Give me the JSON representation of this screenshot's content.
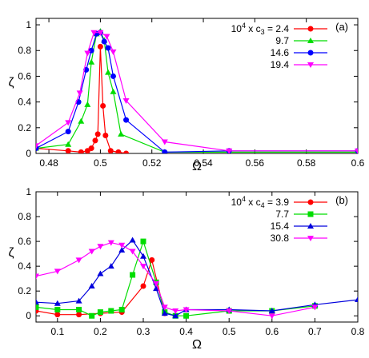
{
  "chart_data": [
    {
      "panel_label": "(a)",
      "type": "line",
      "xlabel": "Ω",
      "ylabel": "ζ",
      "xlim": [
        0.475,
        0.6
      ],
      "ylim": [
        0,
        1.05
      ],
      "xticks": [
        "0.48",
        "0.5",
        "0.52",
        "0.54",
        "0.56",
        "0.58",
        "0.6"
      ],
      "xtick_values": [
        0.48,
        0.5,
        0.52,
        0.54,
        0.56,
        0.58,
        0.6
      ],
      "yticks": [
        "0",
        "0.2",
        "0.4",
        "0.6",
        "0.8",
        "1"
      ],
      "ytick_values": [
        0,
        0.2,
        0.4,
        0.6,
        0.8,
        1.0
      ],
      "legend_position": "top-right",
      "legend_prefix": "10",
      "legend_exp": "4",
      "legend_var": " x c",
      "legend_sub": "3",
      "series": [
        {
          "name": "2.4",
          "color": "#ff0000",
          "marker": "circle",
          "x": [
            0.475,
            0.4875,
            0.4925,
            0.495,
            0.4965,
            0.498,
            0.499,
            0.5,
            0.501,
            0.502,
            0.504,
            0.507,
            0.51
          ],
          "y": [
            0.04,
            0.02,
            0.01,
            0.02,
            0.04,
            0.1,
            0.15,
            0.83,
            0.37,
            0.14,
            0.02,
            0.01,
            0.0
          ]
        },
        {
          "name": "9.7",
          "color": "#00dd00",
          "marker": "triangle-up",
          "x": [
            0.475,
            0.4875,
            0.4925,
            0.495,
            0.4965,
            0.4985,
            0.5,
            0.5015,
            0.503,
            0.505,
            0.508,
            0.525,
            0.55,
            0.6
          ],
          "y": [
            0.04,
            0.07,
            0.25,
            0.38,
            0.71,
            0.93,
            0.95,
            0.88,
            0.63,
            0.48,
            0.15,
            0.01,
            0.01,
            0.01
          ]
        },
        {
          "name": "14.6",
          "color": "#0000ff",
          "marker": "circle",
          "x": [
            0.475,
            0.4875,
            0.4915,
            0.4945,
            0.4965,
            0.4985,
            0.5,
            0.5015,
            0.503,
            0.505,
            0.51,
            0.525,
            0.55,
            0.6
          ],
          "y": [
            0.04,
            0.17,
            0.4,
            0.65,
            0.8,
            0.93,
            0.94,
            0.87,
            0.82,
            0.6,
            0.26,
            0.01,
            0.02,
            0.02
          ]
        },
        {
          "name": "19.4",
          "color": "#ff00ff",
          "marker": "triangle-down",
          "x": [
            0.475,
            0.4875,
            0.492,
            0.495,
            0.4975,
            0.5,
            0.5025,
            0.505,
            0.51,
            0.525,
            0.55,
            0.6
          ],
          "y": [
            0.06,
            0.24,
            0.47,
            0.78,
            0.94,
            0.94,
            0.91,
            0.79,
            0.41,
            0.09,
            0.02,
            0.02
          ]
        }
      ]
    },
    {
      "panel_label": "(b)",
      "type": "line",
      "xlabel": "Ω",
      "ylabel": "ζ",
      "xlim": [
        0.05,
        0.8
      ],
      "ylim": [
        -0.05,
        1.0
      ],
      "xticks": [
        "0.1",
        "0.2",
        "0.3",
        "0.4",
        "0.5",
        "0.6",
        "0.7",
        "0.8"
      ],
      "xtick_values": [
        0.1,
        0.2,
        0.3,
        0.4,
        0.5,
        0.6,
        0.7,
        0.8
      ],
      "yticks": [
        "0",
        "0.2",
        "0.4",
        "0.6",
        "0.8",
        "1"
      ],
      "ytick_values": [
        0,
        0.2,
        0.4,
        0.6,
        0.8,
        1.0
      ],
      "legend_position": "top-right",
      "legend_prefix": "10",
      "legend_exp": "4",
      "legend_var": " x c",
      "legend_sub": "4",
      "series": [
        {
          "name": "3.9",
          "color": "#ff0000",
          "marker": "circle",
          "x": [
            0.05,
            0.1,
            0.15,
            0.2,
            0.25,
            0.3,
            0.32,
            0.35
          ],
          "y": [
            0.04,
            0.01,
            0.01,
            0.02,
            0.03,
            0.24,
            0.45,
            0.02
          ]
        },
        {
          "name": "7.7",
          "color": "#00dd00",
          "marker": "square",
          "x": [
            0.05,
            0.1,
            0.15,
            0.18,
            0.2,
            0.225,
            0.25,
            0.275,
            0.3,
            0.33,
            0.35,
            0.375,
            0.4,
            0.5,
            0.6,
            0.7
          ],
          "y": [
            0.07,
            0.05,
            0.05,
            0.0,
            0.03,
            0.04,
            0.05,
            0.33,
            0.6,
            0.27,
            0.03,
            0.0,
            0.0,
            0.04,
            0.04,
            0.08
          ]
        },
        {
          "name": "15.4",
          "color": "#0000dd",
          "marker": "triangle-up",
          "x": [
            0.05,
            0.1,
            0.15,
            0.18,
            0.2,
            0.225,
            0.25,
            0.275,
            0.3,
            0.33,
            0.35,
            0.375,
            0.4,
            0.5,
            0.6,
            0.7,
            0.8
          ],
          "y": [
            0.11,
            0.1,
            0.12,
            0.24,
            0.34,
            0.4,
            0.53,
            0.61,
            0.48,
            0.22,
            0.02,
            0.0,
            0.05,
            0.05,
            0.04,
            0.09,
            0.13
          ]
        },
        {
          "name": "30.8",
          "color": "#ff00ff",
          "marker": "triangle-down",
          "x": [
            0.05,
            0.1,
            0.15,
            0.18,
            0.2,
            0.225,
            0.25,
            0.275,
            0.3,
            0.33,
            0.35,
            0.375,
            0.4,
            0.5,
            0.6,
            0.7
          ],
          "y": [
            0.32,
            0.36,
            0.45,
            0.52,
            0.56,
            0.59,
            0.57,
            0.52,
            0.4,
            0.26,
            0.07,
            0.04,
            0.05,
            0.04,
            0.0,
            0.07
          ]
        }
      ]
    }
  ]
}
